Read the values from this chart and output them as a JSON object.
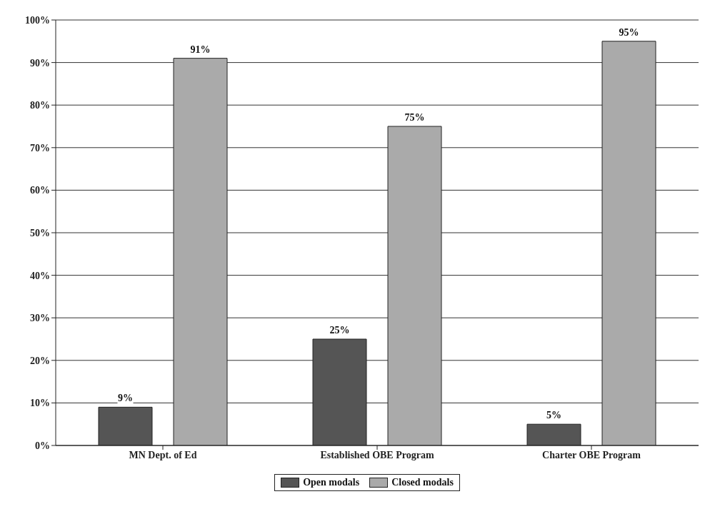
{
  "chart_data": {
    "type": "bar",
    "categories": [
      "MN Dept. of Ed",
      "Established OBE Program",
      "Charter OBE Program"
    ],
    "series": [
      {
        "name": "Open modals",
        "color": "#555555",
        "values": [
          9,
          25,
          5
        ],
        "value_labels": [
          "9%",
          "25%",
          "5%"
        ]
      },
      {
        "name": "Closed modals",
        "color": "#aaaaaa",
        "values": [
          91,
          75,
          95
        ],
        "value_labels": [
          "91%",
          "75%",
          "95%"
        ]
      }
    ],
    "ylim": [
      0,
      100
    ],
    "yticks": [
      {
        "value": 0,
        "label": "0%"
      },
      {
        "value": 10,
        "label": "10%"
      },
      {
        "value": 20,
        "label": "20%"
      },
      {
        "value": 30,
        "label": "30%"
      },
      {
        "value": 40,
        "label": "40%"
      },
      {
        "value": 50,
        "label": "50%"
      },
      {
        "value": 60,
        "label": "60%"
      },
      {
        "value": 70,
        "label": "70%"
      },
      {
        "value": 80,
        "label": "80%"
      },
      {
        "value": 90,
        "label": "90%"
      },
      {
        "value": 100,
        "label": "100%"
      }
    ],
    "grid": "y",
    "legend": "bottom"
  }
}
